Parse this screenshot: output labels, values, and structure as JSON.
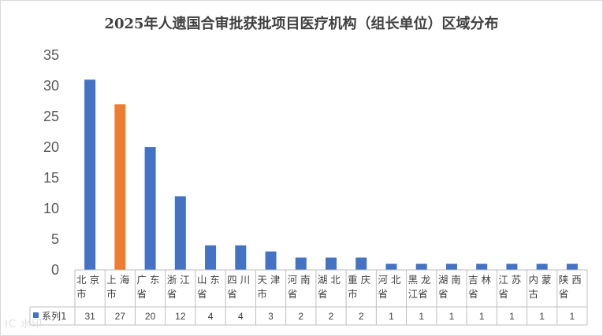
{
  "chart_data": {
    "type": "table",
    "chart_kind": "bar",
    "title": "2025年人遗国合审批获批项目医疗机构（组长单位）区域分布",
    "categories": [
      [
        "北 京",
        "市"
      ],
      [
        "上 海",
        "市"
      ],
      [
        "广 东",
        "省"
      ],
      [
        "浙 江",
        "省"
      ],
      [
        "山 东",
        "省"
      ],
      [
        "四 川",
        "省"
      ],
      [
        "天 津",
        "市"
      ],
      [
        "河 南",
        "省"
      ],
      [
        "湖 北",
        "省"
      ],
      [
        "重 庆",
        "市"
      ],
      [
        "河 北",
        "省"
      ],
      [
        "黑 龙",
        "江省"
      ],
      [
        "湖 南",
        "省"
      ],
      [
        "吉 林",
        "省"
      ],
      [
        "江 苏",
        "省"
      ],
      [
        "内 蒙",
        "古"
      ],
      [
        "陕 西",
        "省"
      ]
    ],
    "series": [
      {
        "name": "系列1",
        "values": [
          31,
          27,
          20,
          12,
          4,
          4,
          3,
          2,
          2,
          2,
          1,
          1,
          1,
          1,
          1,
          1,
          1
        ]
      }
    ],
    "highlight_index": 1,
    "colors": {
      "default": "#4472c4",
      "highlight": "#ed7d31"
    },
    "ylim": [
      0,
      35
    ],
    "yticks": [
      0,
      5,
      10,
      15,
      20,
      25,
      30,
      35
    ],
    "grid": false,
    "legend": "data-table"
  },
  "watermark": "IC 水印"
}
